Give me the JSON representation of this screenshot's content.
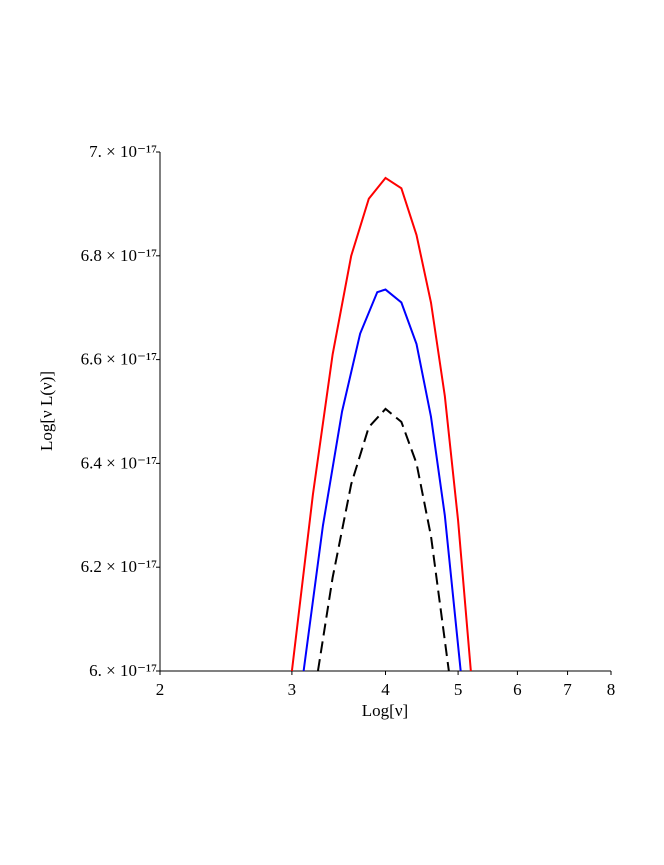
{
  "chart_data": {
    "type": "line",
    "x_label": "Log[ν]",
    "y_label": "Log[ν L(ν)]",
    "log_x": true,
    "xlim": [
      2,
      8
    ],
    "xticks": [
      2,
      3,
      4,
      5,
      6,
      7,
      8
    ],
    "ylim": [
      6e-17,
      7e-17
    ],
    "yticks": [
      {
        "value": 6e-17,
        "label": "6. × 10⁻¹⁷"
      },
      {
        "value": 6.2e-17,
        "label": "6.2 × 10⁻¹⁷"
      },
      {
        "value": 6.4e-17,
        "label": "6.4 × 10⁻¹⁷"
      },
      {
        "value": 6.6e-17,
        "label": "6.6 × 10⁻¹⁷"
      },
      {
        "value": 6.8e-17,
        "label": "6.8 × 10⁻¹⁷"
      },
      {
        "value": 7e-17,
        "label": "7. × 10⁻¹⁷"
      }
    ],
    "series": [
      {
        "color": "#ff0000",
        "style": "solid",
        "x": [
          3.0,
          3.2,
          3.4,
          3.6,
          3.8,
          4.0,
          4.2,
          4.4,
          4.6,
          4.8,
          5.0,
          5.2
        ],
        "values": [
          6e-17,
          6.34e-17,
          6.61e-17,
          6.8e-17,
          6.91e-17,
          6.95e-17,
          6.93e-17,
          6.84e-17,
          6.71e-17,
          6.53e-17,
          6.29e-17,
          6e-17
        ]
      },
      {
        "color": "#0000ff",
        "style": "solid",
        "x": [
          3.11,
          3.3,
          3.5,
          3.7,
          3.9,
          4.0,
          4.2,
          4.4,
          4.6,
          4.8,
          5.04
        ],
        "values": [
          6e-17,
          6.28e-17,
          6.5e-17,
          6.65e-17,
          6.73e-17,
          6.735e-17,
          6.71e-17,
          6.63e-17,
          6.49e-17,
          6.3e-17,
          6e-17
        ]
      },
      {
        "color": "#000000",
        "style": "dashed",
        "x": [
          3.25,
          3.4,
          3.6,
          3.8,
          4.0,
          4.2,
          4.4,
          4.6,
          4.86
        ],
        "values": [
          6e-17,
          6.18e-17,
          6.36e-17,
          6.47e-17,
          6.505e-17,
          6.48e-17,
          6.4e-17,
          6.26e-17,
          6e-17
        ]
      }
    ]
  }
}
